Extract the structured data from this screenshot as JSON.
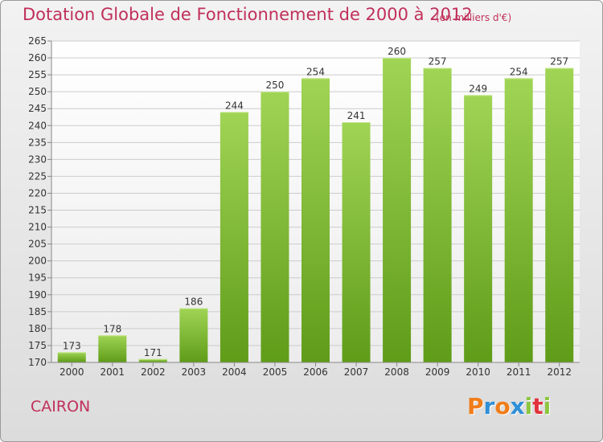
{
  "title": "Dotation Globale de Fonctionnement de 2000 à 2012",
  "unit": "(en milliers d'€)",
  "commune": "CAIRON",
  "logo": {
    "letters": [
      "P",
      "r",
      "o",
      "x",
      "i",
      "t",
      "i"
    ],
    "colors": [
      "#f07d1a",
      "#2f8fd8",
      "#f07d1a",
      "#2f8fd8",
      "#8cc63f",
      "#e2323c",
      "#8cc63f"
    ]
  },
  "colors": {
    "bar_top": "#a0d455",
    "bar_bottom": "#5f9c18",
    "text_accent": "#c0305a",
    "grid": "#cccccc"
  },
  "chart_data": {
    "type": "bar",
    "categories": [
      "2000",
      "2001",
      "2002",
      "2003",
      "2004",
      "2005",
      "2006",
      "2007",
      "2008",
      "2009",
      "2010",
      "2011",
      "2012"
    ],
    "values": [
      173,
      178,
      171,
      186,
      244,
      250,
      254,
      241,
      260,
      257,
      249,
      254,
      257
    ],
    "ylim": [
      170,
      265
    ],
    "yticks": [
      "170",
      "175",
      "180",
      "185",
      "190",
      "195",
      "200",
      "205",
      "210",
      "215",
      "220",
      "225",
      "230",
      "235",
      "240",
      "245",
      "250",
      "255",
      "260",
      "265"
    ],
    "grid": true
  }
}
